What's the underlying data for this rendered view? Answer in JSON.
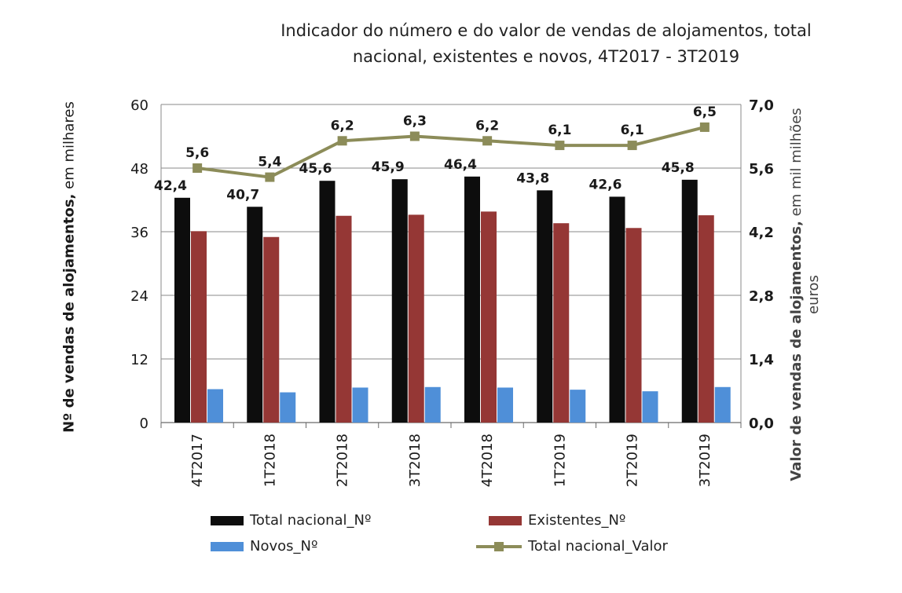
{
  "title_line1": "Indicador do número e do valor de vendas de alojamentos, total",
  "title_line2": "nacional, existentes e novos, 4T2017 - 3T2019",
  "left_axis_label_bold": "Nº  de vendas de alojamentos,",
  "left_axis_label_normal": " em milhares",
  "right_axis_label_bold": "Valor de vendas de alojamentos,",
  "right_axis_label_normal": " em mil milhões",
  "right_axis_label_line2": "euros",
  "colors": {
    "total": "#0d0d0d",
    "existentes": "#953735",
    "novos": "#4F8FD8",
    "valor": "#8C8C59"
  },
  "chart_data": {
    "type": "bar",
    "categories": [
      "4T2017",
      "1T2018",
      "2T2018",
      "3T2018",
      "4T2018",
      "1T2019",
      "2T2019",
      "3T2019"
    ],
    "series": [
      {
        "name": "Total nacional_Nº",
        "axis": "left",
        "values": [
          42.4,
          40.7,
          45.6,
          45.9,
          46.4,
          43.8,
          42.6,
          45.8
        ]
      },
      {
        "name": "Existentes_Nº",
        "axis": "left",
        "values": [
          36.1,
          35.0,
          39.0,
          39.2,
          39.8,
          37.6,
          36.7,
          39.1
        ]
      },
      {
        "name": "Novos_Nº",
        "axis": "left",
        "values": [
          6.3,
          5.7,
          6.6,
          6.7,
          6.6,
          6.2,
          5.9,
          6.7
        ]
      },
      {
        "name": "Total nacional_Valor",
        "axis": "right",
        "type": "line",
        "values": [
          5.6,
          5.4,
          6.2,
          6.3,
          6.2,
          6.1,
          6.1,
          6.5
        ]
      }
    ],
    "total_labels": [
      "42,4",
      "40,7",
      "45,6",
      "45,9",
      "46,4",
      "43,8",
      "42,6",
      "45,8"
    ],
    "valor_labels": [
      "5,6",
      "5,4",
      "6,2",
      "6,3",
      "6,2",
      "6,1",
      "6,1",
      "6,5"
    ],
    "left_axis": {
      "ylim": [
        0,
        60
      ],
      "ticks": [
        "0",
        "12",
        "24",
        "36",
        "48",
        "60"
      ]
    },
    "right_axis": {
      "ylim": [
        0,
        7.0
      ],
      "ticks": [
        "0,0",
        "1,4",
        "2,8",
        "4,2",
        "5,6",
        "7,0"
      ]
    },
    "grid": true,
    "legend": [
      {
        "label": "Total nacional_Nº",
        "kind": "bar",
        "color": "#0d0d0d"
      },
      {
        "label": "Existentes_Nº",
        "kind": "bar",
        "color": "#953735"
      },
      {
        "label": "Novos_Nº",
        "kind": "bar",
        "color": "#4F8FD8"
      },
      {
        "label": "Total nacional_Valor",
        "kind": "line",
        "color": "#8C8C59"
      }
    ],
    "legend_position": "bottom"
  }
}
